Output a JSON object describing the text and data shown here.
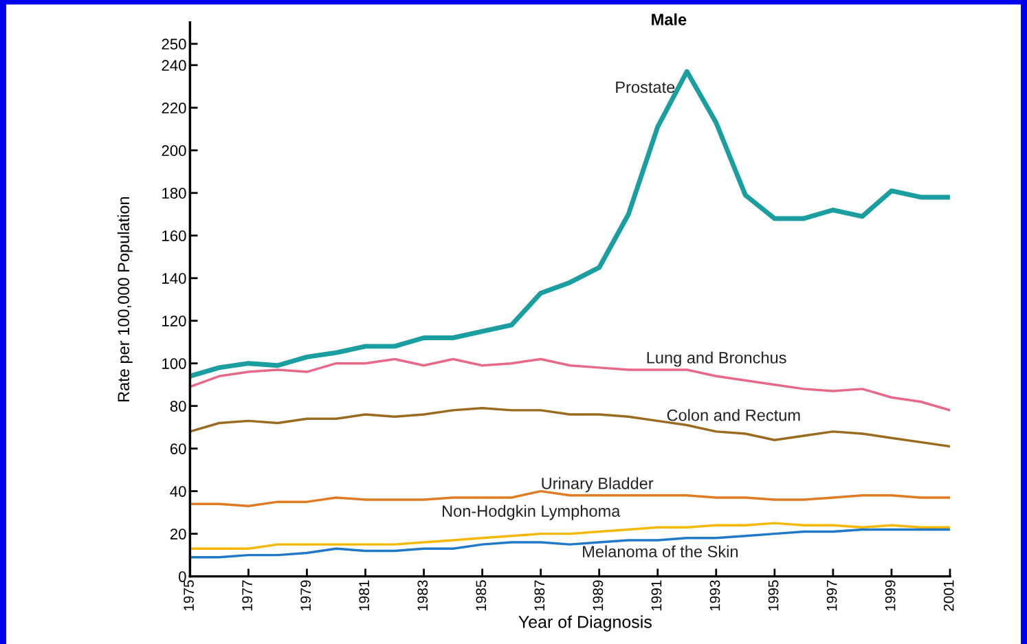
{
  "chart_data": {
    "type": "line",
    "title": "Male",
    "xlabel": "Year of Diagnosis",
    "ylabel": "Rate per 100,000 Population",
    "x": [
      1975,
      1976,
      1977,
      1978,
      1979,
      1980,
      1981,
      1982,
      1983,
      1984,
      1985,
      1986,
      1987,
      1988,
      1989,
      1990,
      1991,
      1992,
      1993,
      1994,
      1995,
      1996,
      1997,
      1998,
      1999,
      2000,
      2001
    ],
    "series": [
      {
        "name": "Prostate",
        "color": "#1a9ea0",
        "values": [
          94,
          98,
          100,
          99,
          103,
          105,
          108,
          108,
          112,
          112,
          115,
          118,
          133,
          138,
          145,
          170,
          211,
          237,
          213,
          179,
          168,
          168,
          172,
          169,
          181,
          178,
          178
        ]
      },
      {
        "name": "Lung and Bronchus",
        "color": "#e8688a",
        "values": [
          89,
          94,
          96,
          97,
          96,
          100,
          100,
          102,
          99,
          102,
          99,
          100,
          102,
          99,
          98,
          97,
          97,
          97,
          94,
          92,
          90,
          88,
          87,
          88,
          84,
          82,
          78
        ]
      },
      {
        "name": "Colon and Rectum",
        "color": "#9a6a1e",
        "values": [
          68,
          72,
          73,
          72,
          74,
          74,
          76,
          75,
          76,
          78,
          79,
          78,
          78,
          76,
          76,
          75,
          73,
          71,
          68,
          67,
          64,
          66,
          68,
          67,
          65,
          63,
          61
        ]
      },
      {
        "name": "Urinary Bladder",
        "color": "#e07b22",
        "values": [
          34,
          34,
          33,
          35,
          35,
          37,
          36,
          36,
          36,
          37,
          37,
          37,
          40,
          38,
          38,
          38,
          38,
          38,
          37,
          37,
          36,
          36,
          37,
          38,
          38,
          37,
          37
        ]
      },
      {
        "name": "Non-Hodgkin Lymphoma",
        "color": "#f5b800",
        "values": [
          13,
          13,
          13,
          15,
          15,
          15,
          15,
          15,
          16,
          17,
          18,
          19,
          20,
          20,
          21,
          22,
          23,
          23,
          24,
          24,
          25,
          24,
          24,
          23,
          24,
          23,
          23
        ]
      },
      {
        "name": "Melanoma of the Skin",
        "color": "#1f78c8",
        "values": [
          9,
          9,
          10,
          10,
          11,
          13,
          12,
          12,
          13,
          13,
          15,
          16,
          16,
          15,
          16,
          17,
          17,
          18,
          18,
          19,
          20,
          21,
          21,
          22,
          22,
          22,
          22
        ]
      }
    ],
    "xlim": [
      1975,
      2001
    ],
    "xticks": [
      1975,
      1977,
      1979,
      1981,
      1983,
      1985,
      1987,
      1989,
      1991,
      1993,
      1995,
      1997,
      1999,
      2001
    ],
    "ylim": [
      0,
      260
    ],
    "yticks": [
      0,
      20,
      40,
      60,
      80,
      100,
      120,
      140,
      160,
      180,
      200,
      220,
      240,
      250
    ],
    "grid": false,
    "legend": false,
    "marker": "none",
    "line_style": "solid"
  }
}
